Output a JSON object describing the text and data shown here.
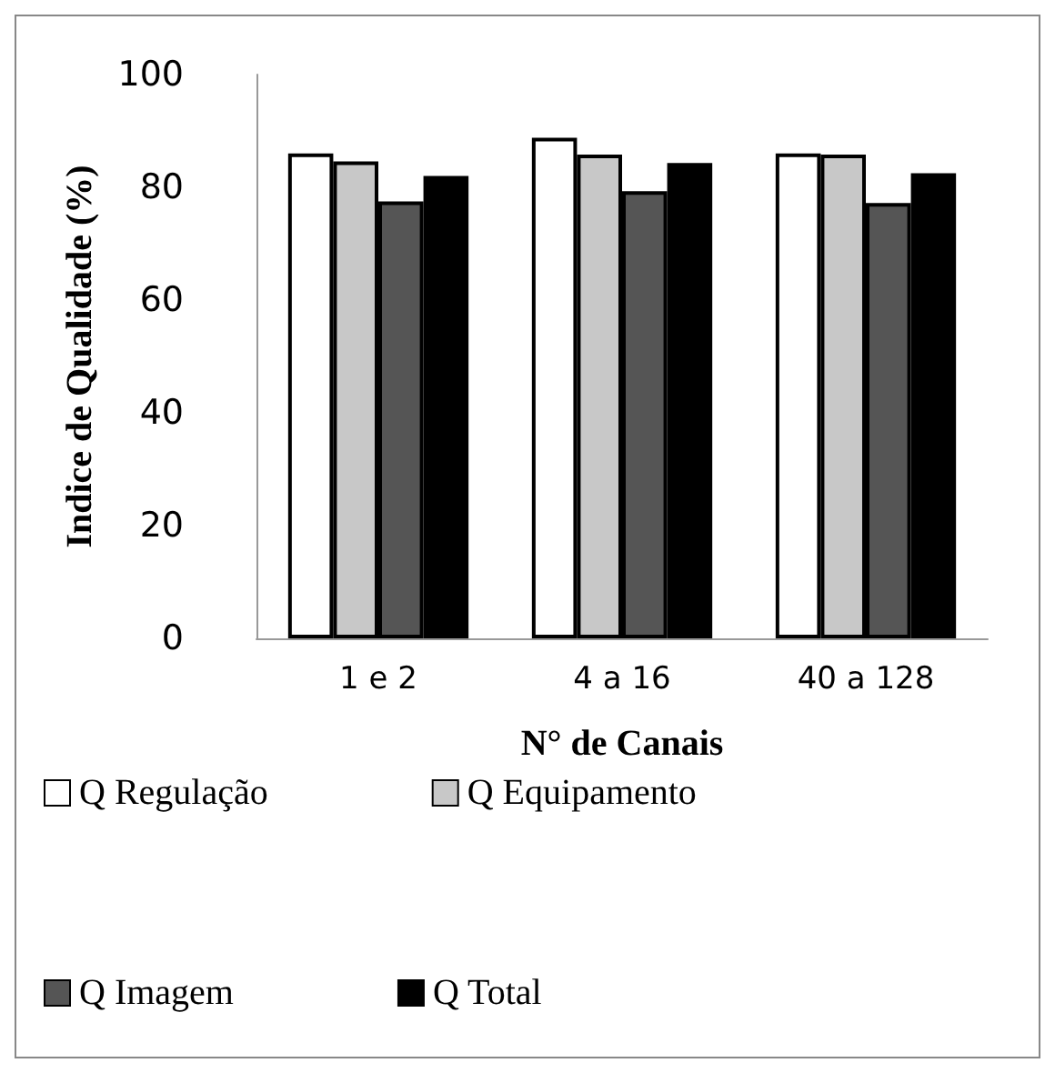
{
  "chart_data": {
    "type": "bar",
    "xlabel": "N° de Canais",
    "ylabel": "Indice de Qualidade (%)",
    "categories": [
      "1 e 2",
      "4 a 16",
      "40 a 128"
    ],
    "series": [
      {
        "name": "Q Regulação",
        "color": "#ffffff",
        "values": [
          86,
          88.8,
          86
        ]
      },
      {
        "name": "Q Equipamento",
        "color": "#c8c8c8",
        "values": [
          84.6,
          85.8,
          85.8
        ]
      },
      {
        "name": "Q Imagem",
        "color": "#555555",
        "values": [
          77.5,
          79.3,
          77.2
        ]
      },
      {
        "name": "Q Total",
        "color": "#000000",
        "values": [
          82,
          84.3,
          82.5
        ]
      }
    ],
    "ylim": [
      0,
      100
    ],
    "yticks": [
      0,
      20,
      40,
      60,
      80,
      100
    ],
    "grid": false,
    "legend": "bottom"
  }
}
